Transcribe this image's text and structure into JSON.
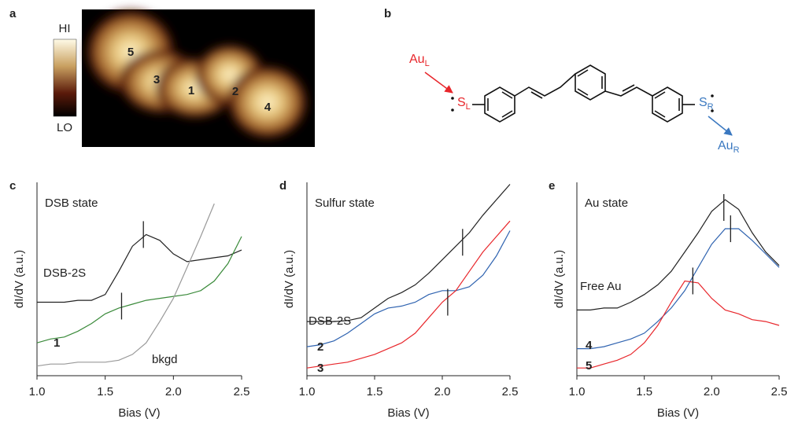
{
  "image": {
    "panel": "a",
    "colorbar": {
      "high": "HI",
      "low": "LO"
    },
    "sites": [
      {
        "label": "5",
        "color": "#e8262b"
      },
      {
        "label": "3",
        "color": "#e8262b"
      },
      {
        "label": "1",
        "color": "#2e7d32"
      },
      {
        "label": "2",
        "color": "#2f63b0"
      },
      {
        "label": "4",
        "color": "#2f63b0"
      }
    ]
  },
  "molecule": {
    "panel": "b",
    "left_contact": {
      "text": "Au",
      "sub": "L",
      "color": "#e8262b"
    },
    "left_sulfur": {
      "text": "S",
      "sub": "L",
      "color": "#e8262b"
    },
    "right_sulfur": {
      "text": "S",
      "sub": "R",
      "color": "#3a78c0"
    },
    "right_contact": {
      "text": "Au",
      "sub": "R",
      "color": "#3a78c0"
    }
  },
  "chart_data": [
    {
      "type": "line",
      "panel": "c",
      "title": "DSB state",
      "xlabel": "Bias (V)",
      "ylabel": "dI/dV (a.u.)",
      "x": [
        1.0,
        1.1,
        1.2,
        1.3,
        1.4,
        1.5,
        1.6,
        1.7,
        1.8,
        1.9,
        2.0,
        2.1,
        2.2,
        2.3,
        2.4,
        2.5
      ],
      "xlim": [
        1.0,
        2.5
      ],
      "ylim": [
        0,
        100
      ],
      "xticks": [
        {
          "value": 1.0,
          "label": "1.0"
        },
        1.5,
        {
          "value": 2.0,
          "label": "2.0"
        },
        2.5
      ],
      "series": [
        {
          "name": "DSB-2S",
          "color": "#222222",
          "values": [
            38,
            38,
            38,
            39,
            39,
            42,
            54,
            67,
            73,
            70,
            63,
            59,
            60,
            61,
            62,
            65
          ]
        },
        {
          "name": "1",
          "color": "#3a8a3a",
          "values": [
            17,
            19,
            20,
            23,
            27,
            32,
            35,
            37,
            39,
            40,
            41,
            42,
            44,
            49,
            58,
            72
          ]
        },
        {
          "name": "bkgd",
          "color": "#999999",
          "values": [
            5,
            6,
            6,
            7,
            7,
            7,
            8,
            11,
            17,
            28,
            40,
            56,
            72,
            89,
            null,
            null
          ]
        }
      ],
      "markers": [
        {
          "x": 1.78,
          "y": 73
        },
        {
          "x": 1.62,
          "y": 36
        }
      ]
    },
    {
      "type": "line",
      "panel": "d",
      "title": "Sulfur state",
      "xlabel": "Bias (V)",
      "ylabel": "dI/dV (a.u.)",
      "x": [
        1.0,
        1.1,
        1.2,
        1.3,
        1.4,
        1.5,
        1.6,
        1.7,
        1.8,
        1.9,
        2.0,
        2.1,
        2.2,
        2.3,
        2.4,
        2.5
      ],
      "xlim": [
        1.0,
        2.5
      ],
      "ylim": [
        0,
        100
      ],
      "xticks": [
        {
          "value": 1.0,
          "label": "1.0"
        },
        1.5,
        {
          "value": 2.0,
          "label": "2.0"
        },
        2.5
      ],
      "series": [
        {
          "name": "DSB-2S",
          "color": "#222222",
          "values": [
            28,
            28,
            28,
            28.5,
            30,
            35,
            40,
            43,
            47,
            53,
            60,
            67,
            74,
            83,
            91,
            99
          ]
        },
        {
          "name": "2",
          "color": "#2f63b0",
          "values": [
            15,
            16,
            18,
            22,
            27,
            32,
            35,
            36,
            38,
            42,
            44,
            44,
            46,
            52,
            62,
            75
          ]
        },
        {
          "name": "3",
          "color": "#e8262b",
          "values": [
            4,
            5,
            6,
            7,
            9,
            11,
            14,
            17,
            22,
            30,
            38,
            44,
            54,
            64,
            72,
            80
          ]
        }
      ],
      "markers": [
        {
          "x": 2.15,
          "y": 69
        },
        {
          "x": 2.04,
          "y": 38
        }
      ]
    },
    {
      "type": "line",
      "panel": "e",
      "title": "Au state",
      "xlabel": "Bias (V)",
      "ylabel": "dI/dV (a.u.)",
      "x": [
        1.0,
        1.1,
        1.2,
        1.3,
        1.4,
        1.5,
        1.6,
        1.7,
        1.8,
        1.9,
        2.0,
        2.1,
        2.2,
        2.3,
        2.4,
        2.5
      ],
      "xlim": [
        1.0,
        2.5
      ],
      "ylim": [
        0,
        100
      ],
      "xticks": [
        {
          "value": 1.0,
          "label": "1.0"
        },
        1.5,
        {
          "value": 2.0,
          "label": "2.0"
        },
        2.5
      ],
      "series": [
        {
          "name": "Free Au",
          "color": "#222222",
          "values": [
            34,
            34,
            35,
            35,
            38,
            42,
            47,
            54,
            64,
            74,
            85,
            91,
            86,
            74,
            64,
            57
          ]
        },
        {
          "name": "4",
          "color": "#2f63b0",
          "values": [
            14,
            14,
            15,
            17,
            19,
            22,
            28,
            35,
            44,
            56,
            68,
            76,
            76,
            70,
            63,
            56
          ]
        },
        {
          "name": "5",
          "color": "#e8262b",
          "values": [
            4,
            4,
            6,
            8,
            11,
            17,
            26,
            38,
            49,
            48,
            40,
            34,
            32,
            29,
            28,
            26
          ]
        }
      ],
      "markers": [
        {
          "x": 2.09,
          "y": 87
        },
        {
          "x": 2.14,
          "y": 76
        },
        {
          "x": 1.86,
          "y": 49
        }
      ]
    }
  ]
}
